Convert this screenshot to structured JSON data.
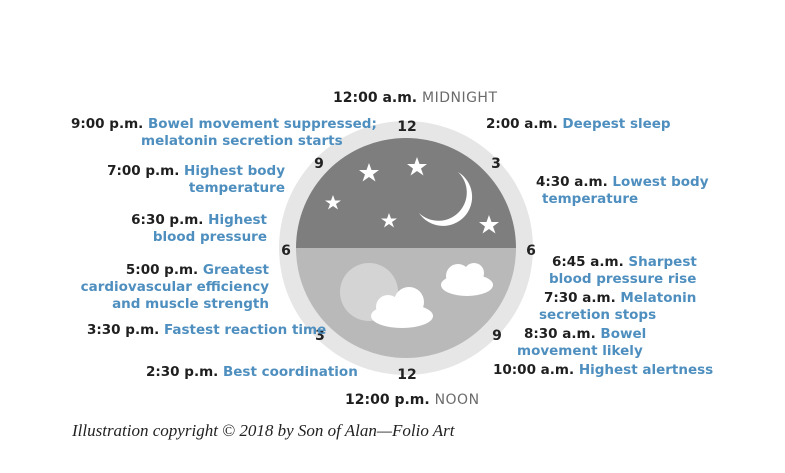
{
  "colors": {
    "time_text": "#1f1f1f",
    "description_text": "#4e8fbf",
    "night_sky": "#7e7e7e",
    "day_sky": "#b9b9b9",
    "clock_ring": "#e6e6e6",
    "sun": "#d4d4d4",
    "moon_and_stars": "#ffffff"
  },
  "clock": {
    "numerals": {
      "top": "12",
      "upper_right": "3",
      "right": "6",
      "lower_right": "9",
      "bottom": "12",
      "lower_left": "3",
      "left": "6",
      "upper_left": "9"
    },
    "icons": [
      "moon-icon",
      "star-icon",
      "sun-icon",
      "cloud-icon"
    ]
  },
  "midnight": {
    "time": "12:00 a.m.",
    "caption": "MIDNIGHT"
  },
  "noon": {
    "time": "12:00 p.m.",
    "caption": "NOON"
  },
  "events_left": [
    {
      "time": "9:00 p.m.",
      "line1": "Bowel movement suppressed;",
      "line2": "melatonin secretion starts"
    },
    {
      "time": "7:00 p.m.",
      "line1": "Highest body",
      "line2": "temperature"
    },
    {
      "time": "6:30 p.m.",
      "line1": "Highest",
      "line2": "blood pressure"
    },
    {
      "time": "5:00 p.m.",
      "line1": "Greatest",
      "line2": "cardiovascular efficiency",
      "line3": "and muscle strength"
    },
    {
      "time": "3:30 p.m.",
      "line1": "Fastest reaction time"
    },
    {
      "time": "2:30 p.m.",
      "line1": "Best coordination"
    }
  ],
  "events_right": [
    {
      "time": "2:00 a.m.",
      "line1": "Deepest sleep"
    },
    {
      "time": "4:30 a.m.",
      "line1": "Lowest body",
      "line2": "temperature"
    },
    {
      "time": "6:45 a.m.",
      "line1": "Sharpest",
      "line2": "blood pressure rise"
    },
    {
      "time": "7:30 a.m.",
      "line1": "Melatonin",
      "line2": "secretion stops"
    },
    {
      "time": "8:30 a.m.",
      "line1": "Bowel",
      "line2": "movement likely"
    },
    {
      "time": "10:00 a.m.",
      "line1": "Highest alertness"
    }
  ],
  "credit": "Illustration copyright © 2018 by Son of Alan—Folio Art"
}
